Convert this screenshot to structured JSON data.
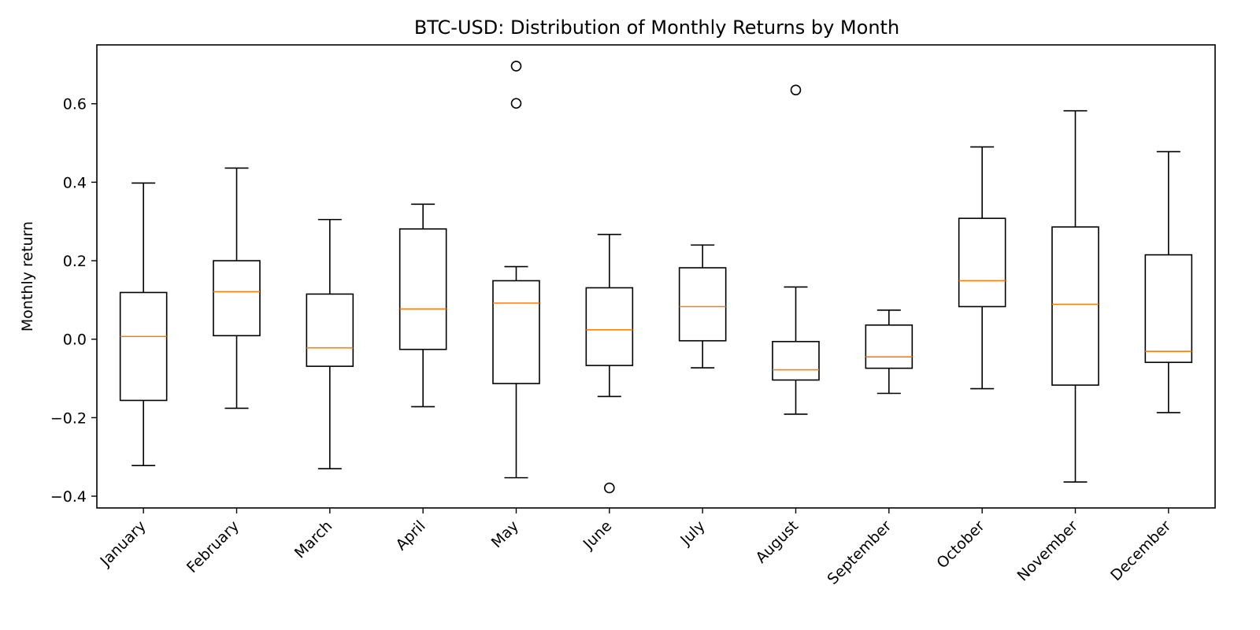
{
  "chart_data": {
    "type": "box",
    "title": "BTC-USD: Distribution of Monthly Returns by Month",
    "xlabel": "",
    "ylabel": "Monthly return",
    "ylim": [
      -0.43,
      0.75
    ],
    "yticks": [
      -0.4,
      -0.2,
      0.0,
      0.2,
      0.4,
      0.6
    ],
    "ytick_labels": [
      "−0.4",
      "−0.2",
      "0.0",
      "0.2",
      "0.4",
      "0.6"
    ],
    "grid": false,
    "categories": [
      "January",
      "February",
      "March",
      "April",
      "May",
      "June",
      "July",
      "August",
      "September",
      "October",
      "November",
      "December"
    ],
    "boxes": [
      {
        "whisker_low": -0.322,
        "q1": -0.156,
        "median": 0.007,
        "q3": 0.119,
        "whisker_high": 0.398,
        "outliers": []
      },
      {
        "whisker_low": -0.176,
        "q1": 0.009,
        "median": 0.121,
        "q3": 0.2,
        "whisker_high": 0.436,
        "outliers": []
      },
      {
        "whisker_low": -0.33,
        "q1": -0.069,
        "median": -0.022,
        "q3": 0.115,
        "whisker_high": 0.305,
        "outliers": []
      },
      {
        "whisker_low": -0.172,
        "q1": -0.026,
        "median": 0.077,
        "q3": 0.281,
        "whisker_high": 0.344,
        "outliers": []
      },
      {
        "whisker_low": -0.353,
        "q1": -0.113,
        "median": 0.092,
        "q3": 0.149,
        "whisker_high": 0.185,
        "outliers": [
          0.601,
          0.696
        ]
      },
      {
        "whisker_low": -0.146,
        "q1": -0.067,
        "median": 0.024,
        "q3": 0.131,
        "whisker_high": 0.267,
        "outliers": [
          -0.379
        ]
      },
      {
        "whisker_low": -0.073,
        "q1": -0.004,
        "median": 0.083,
        "q3": 0.182,
        "whisker_high": 0.24,
        "outliers": []
      },
      {
        "whisker_low": -0.191,
        "q1": -0.104,
        "median": -0.078,
        "q3": -0.006,
        "whisker_high": 0.133,
        "outliers": [
          0.635
        ]
      },
      {
        "whisker_low": -0.138,
        "q1": -0.074,
        "median": -0.045,
        "q3": 0.036,
        "whisker_high": 0.074,
        "outliers": []
      },
      {
        "whisker_low": -0.126,
        "q1": 0.083,
        "median": 0.149,
        "q3": 0.308,
        "whisker_high": 0.49,
        "outliers": []
      },
      {
        "whisker_low": -0.364,
        "q1": -0.117,
        "median": 0.089,
        "q3": 0.286,
        "whisker_high": 0.582,
        "outliers": []
      },
      {
        "whisker_low": -0.187,
        "q1": -0.059,
        "median": -0.031,
        "q3": 0.215,
        "whisker_high": 0.478,
        "outliers": []
      }
    ],
    "colors": {
      "box": "#000000",
      "median": "#ff7f0e",
      "axes": "#000000",
      "background": "#ffffff"
    }
  }
}
